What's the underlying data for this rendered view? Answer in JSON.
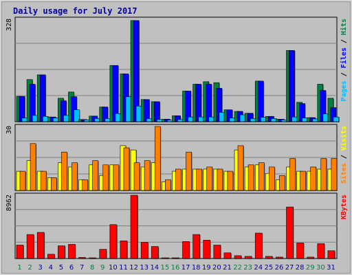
{
  "chart_data": {
    "type": "bar",
    "title": "Daily usage for July 2017",
    "categories": [
      "1",
      "2",
      "3",
      "4",
      "5",
      "6",
      "7",
      "8",
      "9",
      "10",
      "11",
      "12",
      "13",
      "14",
      "15",
      "16",
      "17",
      "18",
      "19",
      "20",
      "21",
      "22",
      "23",
      "24",
      "25",
      "26",
      "27",
      "28",
      "29",
      "30",
      "31"
    ],
    "weekend_days": [
      "1",
      "2",
      "8",
      "9",
      "15",
      "16",
      "22",
      "23",
      "29",
      "30"
    ],
    "panels": [
      {
        "name": "hits-files-pages",
        "max_label": "328",
        "ylim": [
          0,
          328
        ],
        "ylabel_parts": [
          {
            "text": "Pages",
            "color": "#00c0ff"
          },
          {
            "text": " / ",
            "color": "#000000"
          },
          {
            "text": "Files",
            "color": "#0000ff"
          },
          {
            "text": " / ",
            "color": "#000000"
          },
          {
            "text": "Hits",
            "color": "#008040"
          }
        ],
        "series": [
          {
            "name": "Hits",
            "color": "#008040",
            "values": [
              81,
              135,
              150,
              15,
              75,
              95,
              7,
              18,
              47,
              180,
              153,
              324,
              71,
              64,
              8,
              19,
              98,
              120,
              128,
              125,
              38,
              33,
              27,
              130,
              17,
              8,
              228,
              62,
              13,
              120,
              75
            ]
          },
          {
            "name": "Files",
            "color": "#0000ff",
            "values": [
              81,
              120,
              150,
              15,
              67,
              80,
              7,
              18,
              47,
              180,
              153,
              324,
              71,
              64,
              8,
              19,
              98,
              120,
              120,
              107,
              38,
              33,
              27,
              130,
              17,
              8,
              228,
              58,
              13,
              100,
              45
            ]
          },
          {
            "name": "Pages",
            "color": "#00c0ff",
            "values": [
              12,
              20,
              17,
              12,
              20,
              38,
              6,
              10,
              10,
              26,
              80,
              50,
              10,
              7,
              5,
              7,
              15,
              15,
              15,
              30,
              12,
              22,
              10,
              14,
              10,
              6,
              15,
              12,
              9,
              25,
              15
            ]
          }
        ]
      },
      {
        "name": "visits-sites",
        "max_label": "30",
        "ylim": [
          0,
          30
        ],
        "ylabel_parts": [
          {
            "text": "Sites",
            "color": "#ff8000"
          },
          {
            "text": " / ",
            "color": "#000000"
          },
          {
            "text": "Visits",
            "color": "#ffff00"
          }
        ],
        "series": [
          {
            "name": "Visits",
            "color": "#ffff00",
            "values": [
              9,
              14,
              9,
              6,
              13,
              11,
              5,
              12,
              7,
              12,
              21,
              19,
              11,
              13,
              4,
              9,
              10,
              10,
              10,
              10,
              9,
              19,
              11,
              12,
              8,
              5,
              11,
              9,
              9,
              10,
              10
            ]
          },
          {
            "name": "Sites",
            "color": "#ff8000",
            "values": [
              9,
              22,
              9,
              6,
              18,
              13,
              5,
              14,
              12,
              12,
              20,
              13,
              14,
              30,
              5,
              10,
              18,
              10,
              11,
              10,
              9,
              21,
              12,
              13,
              11,
              7,
              15,
              9,
              11,
              15,
              15
            ]
          }
        ]
      },
      {
        "name": "kbytes",
        "max_label": "8962",
        "ylim": [
          0,
          8962
        ],
        "ylabel_parts": [
          {
            "text": "KBytes",
            "color": "#ff0000"
          }
        ],
        "series": [
          {
            "name": "KBytes",
            "color": "#ff0000",
            "values": [
              1900,
              3400,
              3700,
              600,
              1800,
              2000,
              150,
              100,
              1300,
              4800,
              2500,
              8962,
              2300,
              1700,
              100,
              100,
              2400,
              3400,
              2600,
              1900,
              800,
              400,
              300,
              3600,
              300,
              200,
              7300,
              2200,
              200,
              2100,
              1100
            ]
          }
        ]
      }
    ],
    "colors": {
      "background": "#c0c0c0",
      "plot_background": "#c0c0c0",
      "title": "#0000a0",
      "weekday_label": "#0000a0",
      "weekend_label": "#008040",
      "gridline": "#808080",
      "bar_outline": "#000000"
    }
  }
}
